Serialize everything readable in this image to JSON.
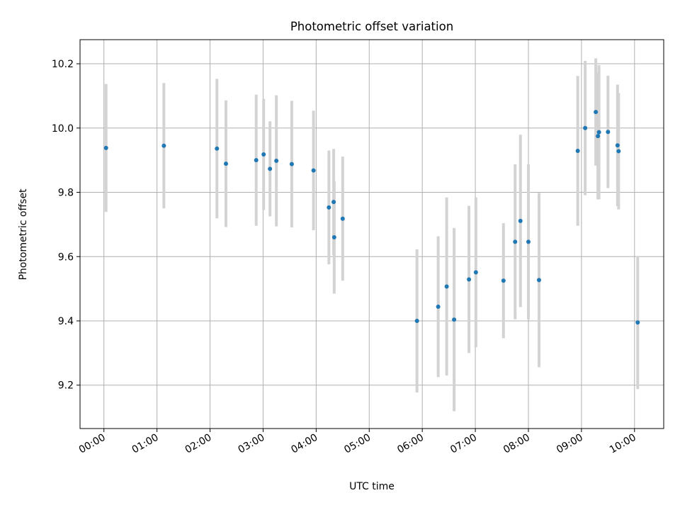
{
  "chart_data": {
    "type": "scatter",
    "title": "Photometric offset variation",
    "xlabel": "UTC time",
    "ylabel": "Photometric offset",
    "x_unit": "hours since 00:00 UTC",
    "xlim": [
      -0.45,
      10.55
    ],
    "ylim": [
      9.065,
      10.275
    ],
    "x_ticks": [
      0,
      1,
      2,
      3,
      4,
      5,
      6,
      7,
      8,
      9,
      10
    ],
    "x_tick_labels": [
      "00:00",
      "01:00",
      "02:00",
      "03:00",
      "04:00",
      "05:00",
      "06:00",
      "07:00",
      "08:00",
      "09:00",
      "10:00"
    ],
    "y_ticks": [
      9.2,
      9.4,
      9.6,
      9.8,
      10.0,
      10.2
    ],
    "y_tick_labels": [
      "9.2",
      "9.4",
      "9.6",
      "9.8",
      "10.0",
      "10.2"
    ],
    "grid": true,
    "colors": {
      "point": "#1f77b4",
      "errorbar": "#d3d3d3",
      "grid": "#b0b0b0",
      "axes": "#000000"
    },
    "series": [
      {
        "name": "photometric offset",
        "points": [
          {
            "x": 0.04,
            "y": 9.938,
            "err": 0.199
          },
          {
            "x": 1.13,
            "y": 9.945,
            "err": 0.195
          },
          {
            "x": 2.13,
            "y": 9.936,
            "err": 0.217
          },
          {
            "x": 2.3,
            "y": 9.889,
            "err": 0.197
          },
          {
            "x": 2.87,
            "y": 9.9,
            "err": 0.204
          },
          {
            "x": 3.01,
            "y": 9.918,
            "err": 0.173
          },
          {
            "x": 3.13,
            "y": 9.873,
            "err": 0.148
          },
          {
            "x": 3.25,
            "y": 9.898,
            "err": 0.204
          },
          {
            "x": 3.54,
            "y": 9.888,
            "err": 0.197
          },
          {
            "x": 3.95,
            "y": 9.868,
            "err": 0.186
          },
          {
            "x": 4.24,
            "y": 9.753,
            "err": 0.177
          },
          {
            "x": 4.33,
            "y": 9.77,
            "err": 0.165
          },
          {
            "x": 4.34,
            "y": 9.66,
            "err": 0.175
          },
          {
            "x": 4.5,
            "y": 9.718,
            "err": 0.193
          },
          {
            "x": 5.9,
            "y": 9.4,
            "err": 0.223
          },
          {
            "x": 6.3,
            "y": 9.444,
            "err": 0.219
          },
          {
            "x": 6.46,
            "y": 9.507,
            "err": 0.277
          },
          {
            "x": 6.6,
            "y": 9.404,
            "err": 0.285
          },
          {
            "x": 6.88,
            "y": 9.529,
            "err": 0.229
          },
          {
            "x": 7.01,
            "y": 9.551,
            "err": 0.233
          },
          {
            "x": 7.53,
            "y": 9.525,
            "err": 0.179
          },
          {
            "x": 7.75,
            "y": 9.646,
            "err": 0.241
          },
          {
            "x": 7.85,
            "y": 9.711,
            "err": 0.268
          },
          {
            "x": 8.0,
            "y": 9.646,
            "err": 0.241
          },
          {
            "x": 8.2,
            "y": 9.527,
            "err": 0.271
          },
          {
            "x": 8.93,
            "y": 9.929,
            "err": 0.233
          },
          {
            "x": 9.07,
            "y": 10.0,
            "err": 0.209
          },
          {
            "x": 9.27,
            "y": 10.05,
            "err": 0.167
          },
          {
            "x": 9.31,
            "y": 9.975,
            "err": 0.197
          },
          {
            "x": 9.33,
            "y": 9.987,
            "err": 0.209
          },
          {
            "x": 9.5,
            "y": 9.988,
            "err": 0.175
          },
          {
            "x": 9.68,
            "y": 9.946,
            "err": 0.189
          },
          {
            "x": 9.7,
            "y": 9.928,
            "err": 0.181
          },
          {
            "x": 10.06,
            "y": 9.395,
            "err": 0.207
          }
        ]
      }
    ]
  }
}
